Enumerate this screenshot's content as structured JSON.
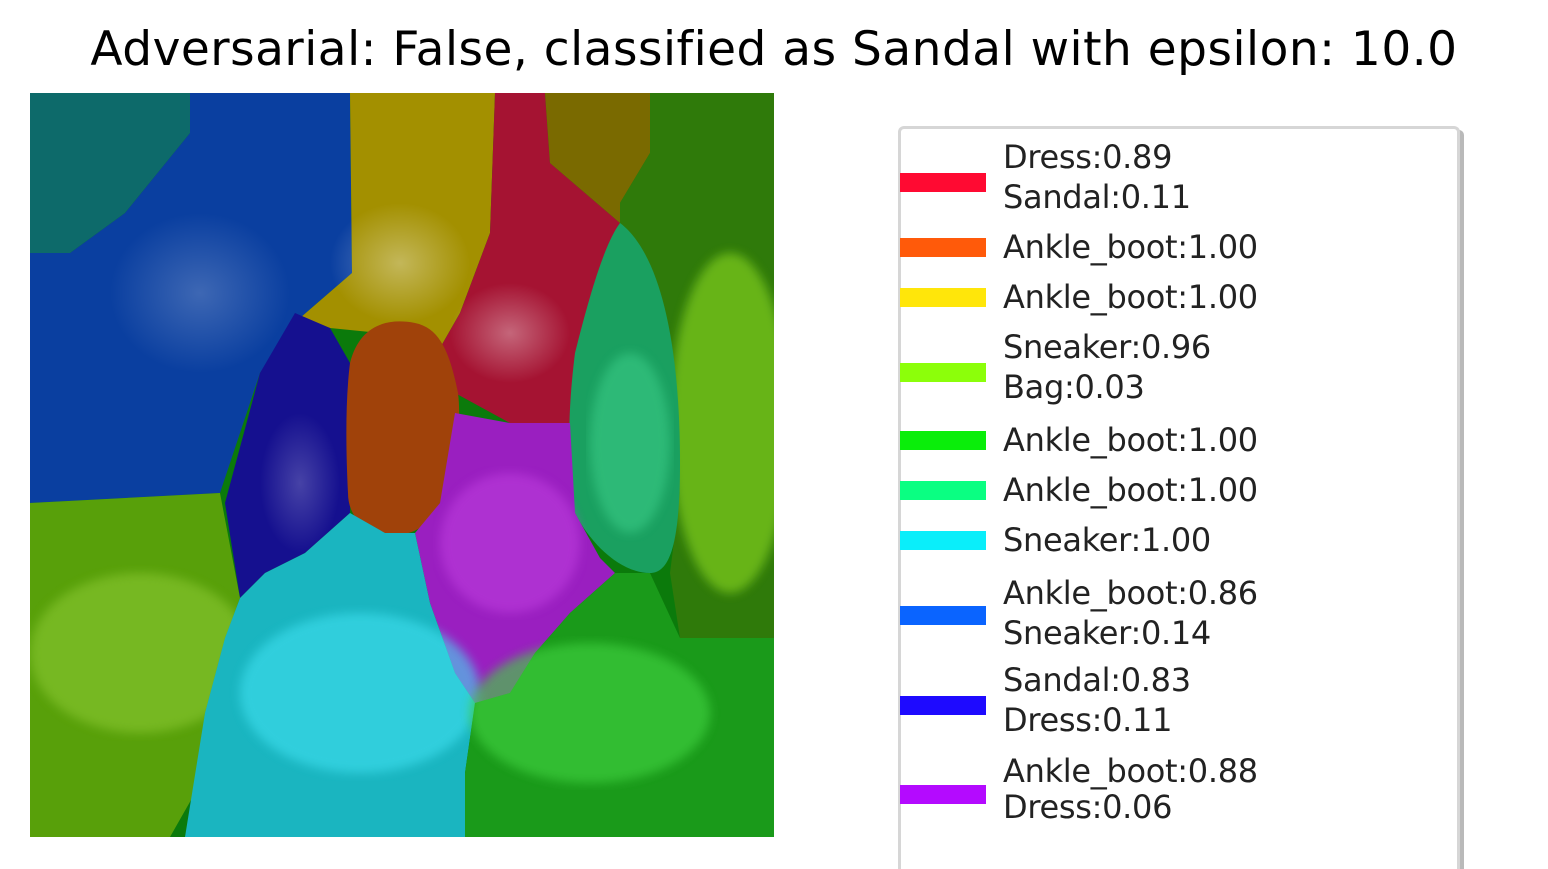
{
  "title": "Adversarial: False, classified as Sandal with epsilon: 10.0",
  "legend": [
    {
      "color": "#ff0a32",
      "line1": "Dress:0.89",
      "line2": "Sandal:0.11"
    },
    {
      "color": "#ff5a0a",
      "line1": "Ankle_boot:1.00",
      "line2": ""
    },
    {
      "color": "#ffe60a",
      "line1": "Ankle_boot:1.00",
      "line2": ""
    },
    {
      "color": "#8cff0a",
      "line1": "Sneaker:0.96",
      "line2": "Bag:0.03"
    },
    {
      "color": "#0aee0a",
      "line1": "Ankle_boot:1.00",
      "line2": ""
    },
    {
      "color": "#0aff82",
      "line1": "Ankle_boot:1.00",
      "line2": ""
    },
    {
      "color": "#0aeefa",
      "line1": "Sneaker:1.00",
      "line2": ""
    },
    {
      "color": "#0a64ff",
      "line1": "Ankle_boot:0.86",
      "line2": "Sneaker:0.14"
    },
    {
      "color": "#1e0aff",
      "line1": "Sandal:0.83",
      "line2": "Dress:0.11"
    },
    {
      "color": "#b40aff",
      "line1": "Ankle_boot:0.88",
      "line2": "Dress:0.06"
    }
  ]
}
